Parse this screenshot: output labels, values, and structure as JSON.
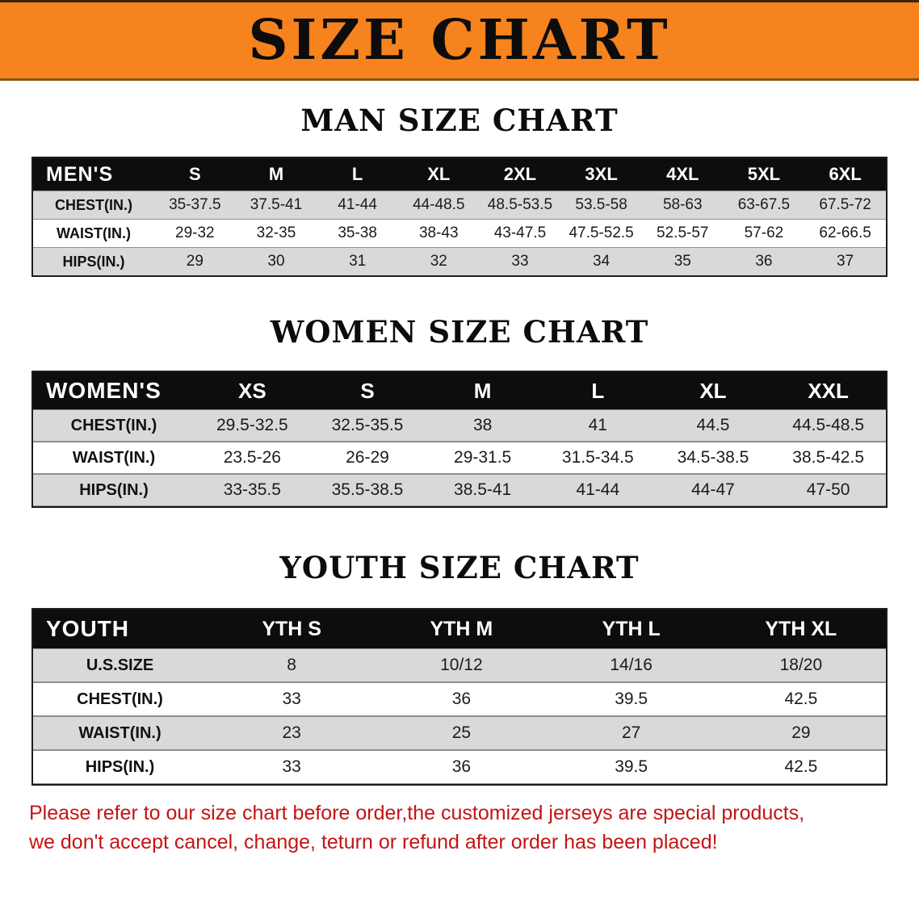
{
  "banner": {
    "title": "SIZE CHART"
  },
  "sections": [
    {
      "id": "men",
      "heading": "MAN SIZE CHART",
      "table": {
        "label": "MEN'S",
        "sizes": [
          "S",
          "M",
          "L",
          "XL",
          "2XL",
          "3XL",
          "4XL",
          "5XL",
          "6XL"
        ],
        "rows": [
          {
            "label": "CHEST(IN.)",
            "values": [
              "35-37.5",
              "37.5-41",
              "41-44",
              "44-48.5",
              "48.5-53.5",
              "53.5-58",
              "58-63",
              "63-67.5",
              "67.5-72"
            ]
          },
          {
            "label": "WAIST(IN.)",
            "values": [
              "29-32",
              "32-35",
              "35-38",
              "38-43",
              "43-47.5",
              "47.5-52.5",
              "52.5-57",
              "57-62",
              "62-66.5"
            ]
          },
          {
            "label": "HIPS(IN.)",
            "values": [
              "29",
              "30",
              "31",
              "32",
              "33",
              "34",
              "35",
              "36",
              "37"
            ]
          }
        ]
      }
    },
    {
      "id": "women",
      "heading": "WOMEN SIZE CHART",
      "table": {
        "label": "WOMEN'S",
        "sizes": [
          "XS",
          "S",
          "M",
          "L",
          "XL",
          "XXL"
        ],
        "rows": [
          {
            "label": "CHEST(IN.)",
            "values": [
              "29.5-32.5",
              "32.5-35.5",
              "38",
              "41",
              "44.5",
              "44.5-48.5"
            ]
          },
          {
            "label": "WAIST(IN.)",
            "values": [
              "23.5-26",
              "26-29",
              "29-31.5",
              "31.5-34.5",
              "34.5-38.5",
              "38.5-42.5"
            ]
          },
          {
            "label": "HIPS(IN.)",
            "values": [
              "33-35.5",
              "35.5-38.5",
              "38.5-41",
              "41-44",
              "44-47",
              "47-50"
            ]
          }
        ]
      }
    },
    {
      "id": "youth",
      "heading": "YOUTH SIZE CHART",
      "table": {
        "label": "YOUTH",
        "sizes": [
          "YTH S",
          "YTH M",
          "YTH L",
          "YTH XL"
        ],
        "rows": [
          {
            "label": "U.S.SIZE",
            "values": [
              "8",
              "10/12",
              "14/16",
              "18/20"
            ]
          },
          {
            "label": "CHEST(IN.)",
            "values": [
              "33",
              "36",
              "39.5",
              "42.5"
            ]
          },
          {
            "label": "WAIST(IN.)",
            "values": [
              "23",
              "25",
              "27",
              "29"
            ]
          },
          {
            "label": "HIPS(IN.)",
            "values": [
              "33",
              "36",
              "39.5",
              "42.5"
            ]
          }
        ]
      }
    }
  ],
  "disclaimer": {
    "line1": "Please refer to our size chart before order,the customized jerseys are special products,",
    "line2": "we don't accept cancel, change, teturn or refund after order has been placed!"
  },
  "colors": {
    "banner_bg": "#f6831d",
    "header_bg": "#0d0d0d",
    "row_gray": "#d9d9d9",
    "disclaimer_red": "#c41414"
  }
}
